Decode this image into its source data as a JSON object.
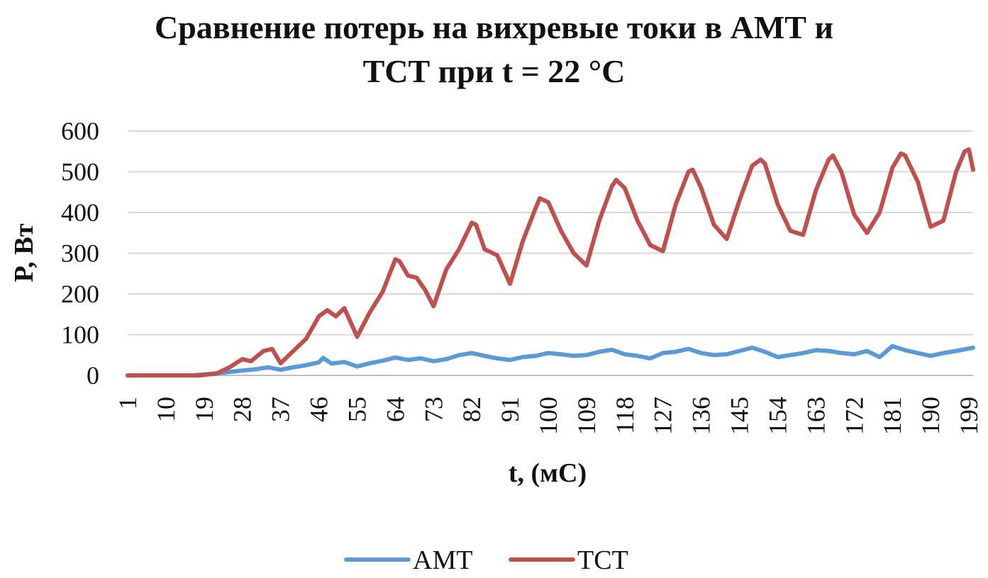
{
  "chart_data": {
    "type": "line",
    "title_lines": [
      "Сравнение потерь на вихревые токи в АМТ и",
      "ТСТ при t = 22 °С"
    ],
    "xlabel": "t, (мС)",
    "ylabel": "P, Вт",
    "ylim": [
      0,
      600
    ],
    "yticks": [
      "0",
      "100",
      "200",
      "300",
      "400",
      "500",
      "600"
    ],
    "xticks": [
      "1",
      "10",
      "19",
      "28",
      "37",
      "46",
      "55",
      "64",
      "73",
      "82",
      "91",
      "100",
      "109",
      "118",
      "127",
      "136",
      "145",
      "154",
      "163",
      "172",
      "181",
      "190",
      "199"
    ],
    "xlim": [
      1,
      200
    ],
    "grid": true,
    "legend_position": "bottom",
    "series": [
      {
        "name": "АМТ",
        "color": "#5b9bd5",
        "x": [
          1,
          16,
          22,
          28,
          31,
          34,
          37,
          40,
          43,
          46,
          47,
          49,
          52,
          55,
          58,
          61,
          64,
          67,
          70,
          73,
          76,
          79,
          82,
          85,
          88,
          91,
          94,
          97,
          100,
          103,
          106,
          109,
          112,
          115,
          118,
          121,
          124,
          127,
          130,
          133,
          136,
          139,
          142,
          145,
          148,
          151,
          154,
          157,
          160,
          163,
          166,
          169,
          172,
          175,
          178,
          181,
          184,
          187,
          190,
          193,
          196,
          200
        ],
        "values": [
          0,
          0,
          5,
          12,
          15,
          20,
          14,
          20,
          25,
          32,
          43,
          29,
          33,
          22,
          30,
          36,
          44,
          38,
          42,
          35,
          40,
          50,
          55,
          48,
          42,
          38,
          45,
          48,
          55,
          52,
          48,
          50,
          58,
          63,
          52,
          48,
          42,
          55,
          58,
          65,
          55,
          50,
          52,
          60,
          68,
          58,
          45,
          50,
          55,
          62,
          60,
          55,
          52,
          60,
          45,
          72,
          62,
          55,
          48,
          55,
          60,
          68
        ]
      },
      {
        "name": "ТСТ",
        "color": "#c0504d",
        "x": [
          1,
          18,
          22,
          25,
          28,
          30,
          33,
          35,
          37,
          40,
          43,
          46,
          48,
          50,
          52,
          55,
          58,
          61,
          64,
          65,
          67,
          69,
          71,
          73,
          76,
          79,
          82,
          83,
          85,
          88,
          91,
          94,
          97,
          98,
          100,
          103,
          106,
          109,
          112,
          115,
          116,
          118,
          121,
          124,
          127,
          130,
          133,
          134,
          136,
          139,
          142,
          145,
          148,
          150,
          151,
          154,
          157,
          160,
          163,
          166,
          167,
          169,
          172,
          175,
          178,
          181,
          183,
          184,
          187,
          190,
          193,
          196,
          198,
          199,
          200
        ],
        "values": [
          0,
          0,
          5,
          20,
          40,
          35,
          60,
          65,
          30,
          60,
          90,
          145,
          160,
          145,
          165,
          95,
          155,
          205,
          285,
          280,
          245,
          240,
          210,
          170,
          260,
          310,
          375,
          370,
          310,
          295,
          225,
          330,
          410,
          435,
          425,
          355,
          300,
          270,
          380,
          465,
          480,
          460,
          380,
          320,
          305,
          420,
          500,
          505,
          460,
          370,
          335,
          430,
          515,
          530,
          520,
          420,
          355,
          345,
          455,
          530,
          540,
          500,
          395,
          350,
          400,
          510,
          545,
          540,
          475,
          365,
          380,
          500,
          550,
          555,
          505
        ]
      }
    ]
  }
}
